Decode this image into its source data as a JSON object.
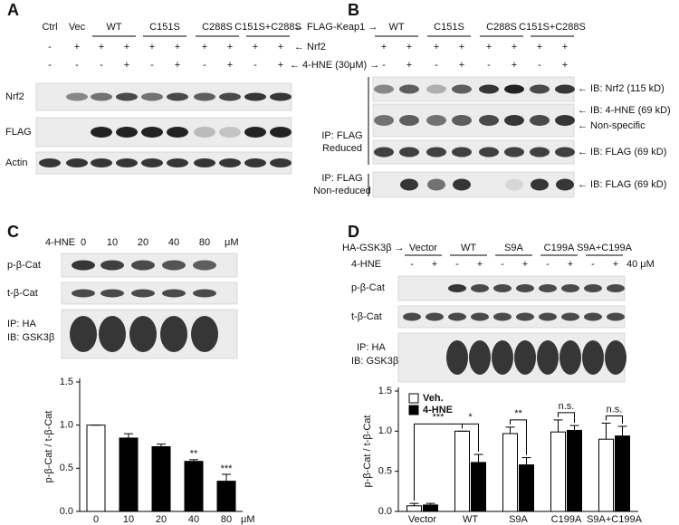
{
  "panel_a": {
    "letter": "A",
    "groups": [
      "Ctrl",
      "Vec",
      "WT",
      "C151S",
      "C288S",
      "C151S+C288S"
    ],
    "group_tag": "← FLAG-Keap1 →",
    "nrf2_signs": [
      "-",
      "+",
      "+",
      "+",
      "+",
      "+",
      "+",
      "+",
      "+",
      "+"
    ],
    "nrf2_tag": "← Nrf2",
    "hne_signs": [
      "-",
      "-",
      "-",
      "+",
      "-",
      "+",
      "-",
      "+",
      "-",
      "+"
    ],
    "hne_tag": "← 4-HNE (30μM) →",
    "blots": [
      "Nrf2",
      "FLAG",
      "Actin"
    ]
  },
  "panel_b": {
    "letter": "B",
    "groups": [
      "WT",
      "C151S",
      "C288S",
      "C151S+C288S"
    ],
    "nrf2_signs": [
      "+",
      "+",
      "+",
      "+",
      "+",
      "+",
      "+",
      "+"
    ],
    "hne_signs": [
      "-",
      "+",
      "-",
      "+",
      "-",
      "+",
      "-",
      "+"
    ],
    "blot_labels": [
      "← IB: Nrf2 (115 kD)",
      "← IB: 4-HNE (69 kD)",
      "← Non-specific",
      "← IB: FLAG (69 kD)",
      "← IB: FLAG (69 kD)"
    ],
    "ip_labels": [
      "IP: FLAG",
      "Reduced",
      "IP: FLAG",
      "Non-reduced"
    ]
  },
  "panel_c": {
    "letter": "C",
    "treatment": "4-HNE",
    "doses": [
      "0",
      "10",
      "20",
      "40",
      "80",
      "μM"
    ],
    "blots": [
      "p-β-Cat",
      "t-β-Cat"
    ],
    "ip_labels": [
      "IP: HA",
      "IB: GSK3β"
    ]
  },
  "panel_d": {
    "letter": "D",
    "construct": "HA-GSK3β →",
    "groups": [
      "Vector",
      "WT",
      "S9A",
      "C199A",
      "S9A+C199A"
    ],
    "treatment": "4-HNE",
    "hne_signs": [
      "-",
      "+",
      "-",
      "+",
      "-",
      "+",
      "-",
      "+",
      "-",
      "+"
    ],
    "dose": "40 μM",
    "blots": [
      "p-β-Cat",
      "t-β-Cat"
    ],
    "ip_labels": [
      "IP: HA",
      "IB: GSK3β"
    ]
  },
  "chart_data": [
    {
      "type": "bar",
      "ylabel": "p-β-Cat / t-β-Cat",
      "categories": [
        "0",
        "10",
        "20",
        "40",
        "80"
      ],
      "xunit": "μM",
      "values": [
        1.0,
        0.85,
        0.75,
        0.58,
        0.35
      ],
      "errors": [
        0,
        0.05,
        0.03,
        0.02,
        0.08
      ],
      "colors": [
        "#ffffff",
        "#000000",
        "#000000",
        "#000000",
        "#000000"
      ],
      "significance": [
        null,
        null,
        null,
        "**",
        "***"
      ],
      "ylim": [
        0,
        1.5
      ],
      "yticks": [
        {
          "value": 0,
          "label": "0.0"
        },
        {
          "value": 0.5,
          "label": "0.5"
        },
        {
          "value": 1.0,
          "label": "1.0"
        },
        {
          "value": 1.5,
          "label": "1.5"
        }
      ]
    },
    {
      "type": "grouped_bar",
      "ylabel": "p-β-Cat / t-β-Cat",
      "categories": [
        "Vector",
        "WT",
        "S9A",
        "C199A",
        "S9A+C199A"
      ],
      "series": [
        {
          "name": "Veh.",
          "color": "#ffffff",
          "values": [
            0.07,
            1.0,
            0.97,
            0.99,
            0.9
          ],
          "errors": [
            0.03,
            0,
            0.08,
            0.15,
            0.2
          ]
        },
        {
          "name": "4-HNE",
          "color": "#000000",
          "values": [
            0.08,
            0.61,
            0.58,
            1.01,
            0.94
          ],
          "errors": [
            0.02,
            0.1,
            0.09,
            0.06,
            0.12
          ]
        }
      ],
      "annotations": [
        "***",
        "*",
        "**",
        "n.s.",
        "n.s."
      ],
      "legend": "upper left",
      "ylim": [
        0,
        1.5
      ],
      "yticks": [
        {
          "value": 0,
          "label": "0.0"
        },
        {
          "value": 0.5,
          "label": "0.5"
        },
        {
          "value": 1.0,
          "label": "1.0"
        },
        {
          "value": 1.5,
          "label": "1.5"
        }
      ]
    }
  ]
}
